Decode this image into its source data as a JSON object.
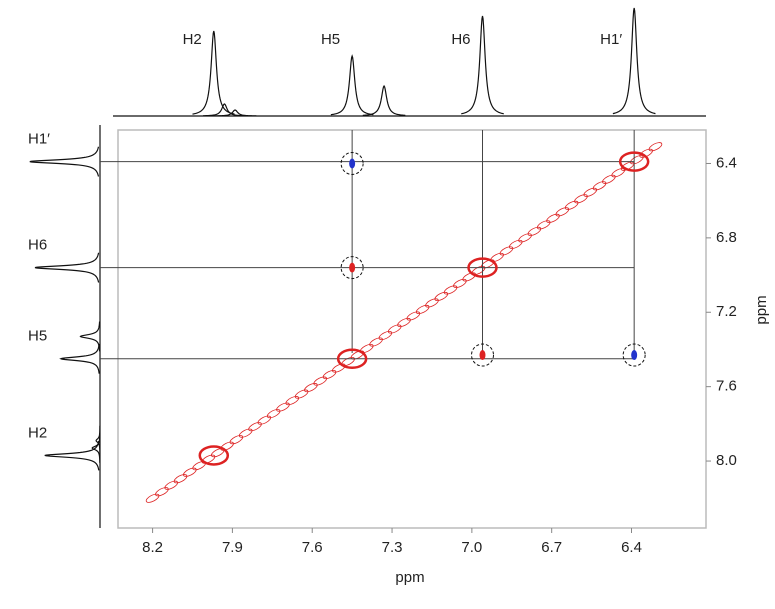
{
  "chart_data": {
    "type": "nmr2d",
    "x_label": "ppm",
    "y_label": "ppm",
    "xlim": [
      8.33,
      6.12
    ],
    "ylim": [
      6.22,
      8.36
    ],
    "xticks": [
      8.2,
      7.9,
      7.6,
      7.3,
      {
        "value": 7,
        "label": "7.0"
      },
      6.7,
      6.4
    ],
    "yticks": [
      6.4,
      6.8,
      7.2,
      7.6,
      {
        "value": 8,
        "label": "8.0"
      }
    ],
    "signals": [
      {
        "label": "H2",
        "shift": 7.97,
        "intensity": 85
      },
      {
        "label": "H5",
        "shift": 7.45,
        "intensity": 60
      },
      {
        "label": "H6",
        "shift": 6.96,
        "intensity": 100
      },
      {
        "label": "H1′",
        "shift": 6.39,
        "intensity": 108
      }
    ],
    "minor_peaks": [
      {
        "shift": 7.93,
        "intensity": 12
      },
      {
        "shift": 7.89,
        "intensity": 6
      },
      {
        "shift": 7.33,
        "intensity": 30
      }
    ],
    "cross_peaks": [
      {
        "x": 7.45,
        "y": 6.4,
        "color": "#2233cc",
        "circled": true
      },
      {
        "x": 6.39,
        "y": 7.43,
        "color": "#2233cc",
        "circled": true
      },
      {
        "x": 6.96,
        "y": 7.43,
        "color": "#dd2222",
        "circled": true
      },
      {
        "x": 7.45,
        "y": 6.96,
        "color": "#dd2222",
        "circled": true
      }
    ],
    "contour_color": "#dd2222"
  }
}
